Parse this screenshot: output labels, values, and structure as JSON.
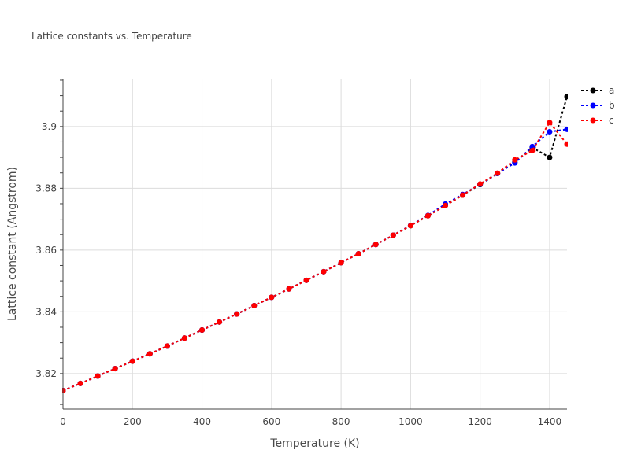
{
  "chart_data": {
    "type": "line",
    "title": "Lattice constants vs. Temperature",
    "xlabel": "Temperature (K)",
    "ylabel": "Lattice constant (Angstrom)",
    "xlim": [
      0,
      1450
    ],
    "ylim": [
      3.8085,
      3.9155
    ],
    "xticks": [
      0,
      200,
      400,
      600,
      800,
      1000,
      1200,
      1400
    ],
    "xtick_labels": [
      "0",
      "200",
      "400",
      "600",
      "800",
      "1000",
      "1200",
      "1400"
    ],
    "yticks": [
      3.82,
      3.84,
      3.86,
      3.88,
      3.9
    ],
    "ytick_labels": [
      "3.82",
      "3.84",
      "3.86",
      "3.88",
      "3.9"
    ],
    "grid": true,
    "legend_position": "top-right",
    "series": [
      {
        "name": "a",
        "color": "#000000",
        "x": [
          0,
          50,
          100,
          150,
          200,
          250,
          300,
          350,
          400,
          450,
          500,
          550,
          600,
          650,
          700,
          750,
          800,
          850,
          900,
          950,
          1000,
          1050,
          1100,
          1150,
          1200,
          1250,
          1300,
          1350,
          1400,
          1450
        ],
        "y": [
          3.8145,
          3.8168,
          3.8192,
          3.8216,
          3.824,
          3.8264,
          3.8289,
          3.8315,
          3.8341,
          3.8367,
          3.8393,
          3.842,
          3.8447,
          3.8474,
          3.8502,
          3.853,
          3.8559,
          3.8588,
          3.8618,
          3.8648,
          3.8679,
          3.8711,
          3.8744,
          3.8778,
          3.8812,
          3.8848,
          3.8885,
          3.8932,
          3.89,
          3.9097
        ]
      },
      {
        "name": "b",
        "color": "#0000ff",
        "x": [
          0,
          50,
          100,
          150,
          200,
          250,
          300,
          350,
          400,
          450,
          500,
          550,
          600,
          650,
          700,
          750,
          800,
          850,
          900,
          950,
          1000,
          1050,
          1100,
          1150,
          1200,
          1250,
          1300,
          1350,
          1400,
          1450
        ],
        "y": [
          3.8145,
          3.8168,
          3.8192,
          3.8216,
          3.824,
          3.8264,
          3.8289,
          3.8315,
          3.8341,
          3.8367,
          3.8393,
          3.842,
          3.8447,
          3.8474,
          3.8502,
          3.853,
          3.8559,
          3.8588,
          3.8618,
          3.8648,
          3.868,
          3.8712,
          3.8749,
          3.878,
          3.8813,
          3.8848,
          3.8882,
          3.8935,
          3.8983,
          3.8991
        ]
      },
      {
        "name": "c",
        "color": "#ff0000",
        "x": [
          0,
          50,
          100,
          150,
          200,
          250,
          300,
          350,
          400,
          450,
          500,
          550,
          600,
          650,
          700,
          750,
          800,
          850,
          900,
          950,
          1000,
          1050,
          1100,
          1150,
          1200,
          1250,
          1300,
          1350,
          1400,
          1450
        ],
        "y": [
          3.8145,
          3.8168,
          3.8192,
          3.8216,
          3.824,
          3.8264,
          3.8289,
          3.8315,
          3.8341,
          3.8367,
          3.8393,
          3.842,
          3.8447,
          3.8474,
          3.8502,
          3.853,
          3.8559,
          3.8588,
          3.8618,
          3.8648,
          3.8679,
          3.8711,
          3.8744,
          3.8778,
          3.8814,
          3.8849,
          3.8892,
          3.8922,
          3.9013,
          3.8943
        ]
      }
    ]
  }
}
